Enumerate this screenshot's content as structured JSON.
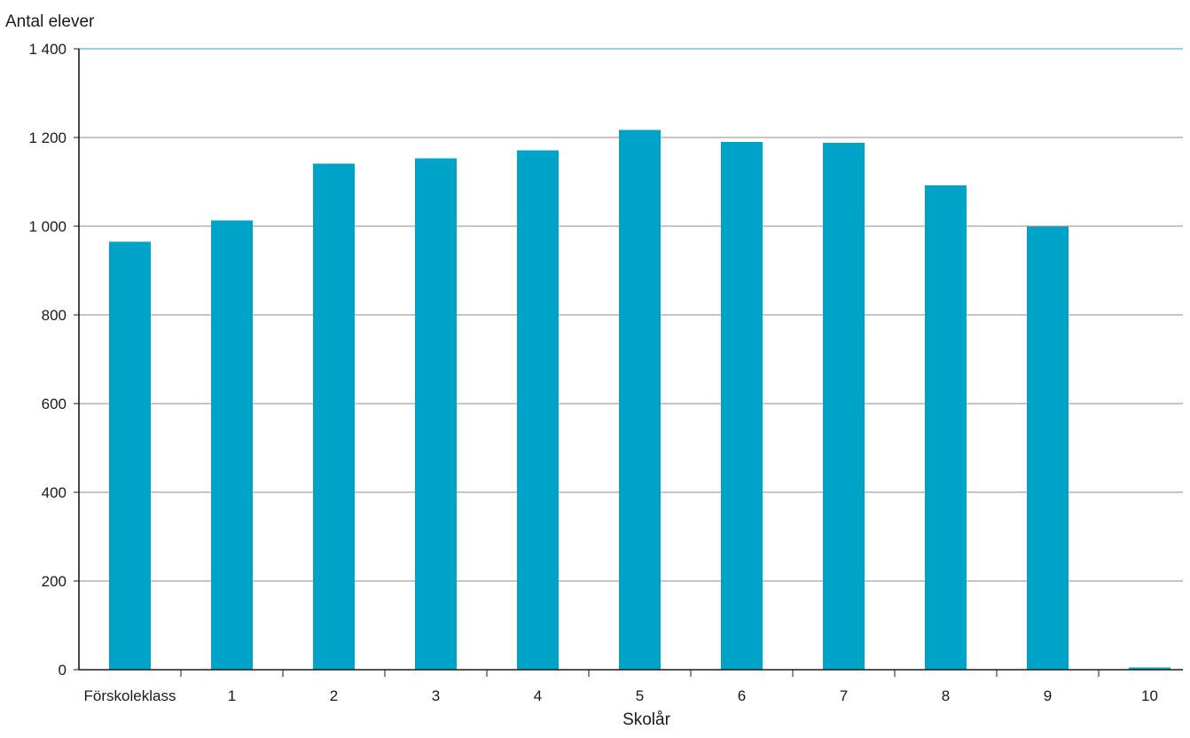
{
  "colors": {
    "bar": "#00a3c8",
    "grid": "#666666",
    "top_line": "#4fb9cf",
    "axis": "#1a1a1a"
  },
  "chart_data": {
    "type": "bar",
    "ylabel": "Antal elever",
    "xlabel": "Skolår",
    "ylim": [
      0,
      1400
    ],
    "yticks": [
      0,
      200,
      400,
      600,
      800,
      1000,
      1200,
      1400
    ],
    "ytick_labels": [
      "0",
      "200",
      "400",
      "600",
      "800",
      "1 000",
      "1 200",
      "1 400"
    ],
    "grid": true,
    "legend": "none",
    "categories": [
      "Förskoleklass",
      "1",
      "2",
      "3",
      "4",
      "5",
      "6",
      "7",
      "8",
      "9",
      "10"
    ],
    "values": [
      965,
      1013,
      1141,
      1153,
      1171,
      1217,
      1190,
      1188,
      1092,
      999,
      5
    ]
  }
}
